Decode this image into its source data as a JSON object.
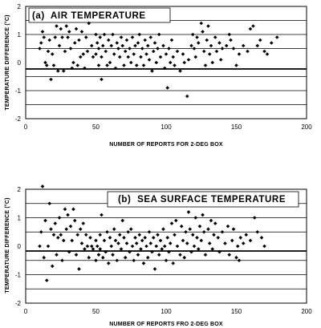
{
  "chart_data": [
    {
      "type": "scatter",
      "title": "(a)  AIR TEMPERATURE",
      "xlabel": "NUMBER OF REPORTS FOR 2-DEG BOX",
      "ylabel": "TEMPERATURE DIFFERENCE (°C)",
      "xlim": [
        0,
        200
      ],
      "ylim": [
        -2,
        2
      ],
      "xticks": [
        "0",
        "50",
        "100",
        "150",
        "200"
      ],
      "yticks": [
        "-2",
        "-1",
        "0",
        "1",
        "2"
      ],
      "grid": "horizontal",
      "points": [
        [
          10,
          0.5
        ],
        [
          11,
          0.7
        ],
        [
          12,
          1.1
        ],
        [
          13,
          0.9
        ],
        [
          14,
          0.0
        ],
        [
          15,
          -0.1
        ],
        [
          16,
          0.4
        ],
        [
          17,
          0.8
        ],
        [
          18,
          -0.6
        ],
        [
          19,
          0.3
        ],
        [
          20,
          -0.1
        ],
        [
          21,
          0.9
        ],
        [
          22,
          1.3
        ],
        [
          23,
          -0.3
        ],
        [
          24,
          0.6
        ],
        [
          25,
          1.2
        ],
        [
          26,
          0.9
        ],
        [
          27,
          -0.3
        ],
        [
          28,
          0.4
        ],
        [
          29,
          1.3
        ],
        [
          30,
          0.9
        ],
        [
          31,
          1.1
        ],
        [
          32,
          0.5
        ],
        [
          33,
          -0.2
        ],
        [
          34,
          0.0
        ],
        [
          35,
          0.7
        ],
        [
          36,
          1.2
        ],
        [
          37,
          -0.1
        ],
        [
          38,
          0.8
        ],
        [
          39,
          0.2
        ],
        [
          40,
          1.1
        ],
        [
          41,
          0.3
        ],
        [
          42,
          -0.2
        ],
        [
          43,
          0.9
        ],
        [
          44,
          0.4
        ],
        [
          45,
          1.4
        ],
        [
          47,
          0.6
        ],
        [
          48,
          0.2
        ],
        [
          50,
          1.0
        ],
        [
          50,
          0.3
        ],
        [
          51,
          0.7
        ],
        [
          52,
          -0.1
        ],
        [
          52,
          0.5
        ],
        [
          53,
          0.9
        ],
        [
          54,
          -0.6
        ],
        [
          54,
          0.2
        ],
        [
          55,
          0.6
        ],
        [
          56,
          1.0
        ],
        [
          57,
          0.4
        ],
        [
          58,
          -0.1
        ],
        [
          59,
          0.8
        ],
        [
          60,
          0.0
        ],
        [
          61,
          0.6
        ],
        [
          62,
          1.0
        ],
        [
          63,
          0.3
        ],
        [
          64,
          -0.2
        ],
        [
          65,
          0.7
        ],
        [
          66,
          0.5
        ],
        [
          67,
          0.2
        ],
        [
          68,
          0.9
        ],
        [
          69,
          0.6
        ],
        [
          70,
          -0.1
        ],
        [
          71,
          0.4
        ],
        [
          72,
          0.8
        ],
        [
          73,
          0.2
        ],
        [
          74,
          0.5
        ],
        [
          75,
          0.0
        ],
        [
          76,
          0.9
        ],
        [
          77,
          0.3
        ],
        [
          78,
          0.6
        ],
        [
          79,
          -0.1
        ],
        [
          80,
          0.7
        ],
        [
          81,
          1.0
        ],
        [
          82,
          0.2
        ],
        [
          83,
          0.5
        ],
        [
          84,
          -0.1
        ],
        [
          85,
          0.8
        ],
        [
          86,
          0.3
        ],
        [
          87,
          0.6
        ],
        [
          88,
          0.1
        ],
        [
          89,
          0.9
        ],
        [
          90,
          -0.3
        ],
        [
          91,
          0.4
        ],
        [
          92,
          0.7
        ],
        [
          93,
          0.0
        ],
        [
          94,
          0.5
        ],
        [
          95,
          1.0
        ],
        [
          96,
          0.2
        ],
        [
          98,
          0.6
        ],
        [
          99,
          -0.2
        ],
        [
          100,
          0.3
        ],
        [
          101,
          -0.9
        ],
        [
          102,
          0.5
        ],
        [
          103,
          0.0
        ],
        [
          104,
          0.8
        ],
        [
          105,
          0.2
        ],
        [
          106,
          -0.1
        ],
        [
          108,
          0.4
        ],
        [
          110,
          -0.3
        ],
        [
          112,
          0.3
        ],
        [
          113,
          0.0
        ],
        [
          115,
          -1.2
        ],
        [
          116,
          0.1
        ],
        [
          118,
          0.6
        ],
        [
          119,
          1.0
        ],
        [
          120,
          0.5
        ],
        [
          121,
          0.2
        ],
        [
          122,
          0.9
        ],
        [
          123,
          0.7
        ],
        [
          125,
          1.4
        ],
        [
          126,
          1.1
        ],
        [
          127,
          0.4
        ],
        [
          128,
          -0.1
        ],
        [
          129,
          0.8
        ],
        [
          130,
          1.3
        ],
        [
          131,
          0.3
        ],
        [
          132,
          0.6
        ],
        [
          133,
          0.0
        ],
        [
          135,
          0.9
        ],
        [
          136,
          0.4
        ],
        [
          138,
          0.7
        ],
        [
          139,
          0.1
        ],
        [
          140,
          0.5
        ],
        [
          143,
          0.6
        ],
        [
          145,
          1.0
        ],
        [
          146,
          0.8
        ],
        [
          148,
          0.5
        ],
        [
          150,
          -0.1
        ],
        [
          152,
          0.3
        ],
        [
          155,
          0.6
        ],
        [
          158,
          0.4
        ],
        [
          160,
          1.2
        ],
        [
          162,
          1.3
        ],
        [
          165,
          0.6
        ],
        [
          167,
          0.8
        ],
        [
          170,
          0.4
        ],
        [
          172,
          0.3
        ],
        [
          175,
          0.7
        ],
        [
          179,
          0.9
        ]
      ]
    },
    {
      "type": "scatter",
      "title": "(b)  SEA SURFACE TEMPERATURE",
      "xlabel": "NUMBER OF REPORTS FRO 2-DEG BOX",
      "ylabel": "TEMPERATURE DIFFERENCE (°C)",
      "xlim": [
        0,
        200
      ],
      "ylim": [
        -2,
        2
      ],
      "xticks": [
        "0",
        "50",
        "100",
        "150",
        "200"
      ],
      "yticks": [
        "-2",
        "-1",
        "0",
        "1",
        "2"
      ],
      "grid": "horizontal",
      "points": [
        [
          10,
          0.0
        ],
        [
          11,
          0.5
        ],
        [
          12,
          2.1
        ],
        [
          13,
          -0.4
        ],
        [
          14,
          0.9
        ],
        [
          15,
          -1.2
        ],
        [
          16,
          0.0
        ],
        [
          17,
          1.5
        ],
        [
          18,
          0.6
        ],
        [
          19,
          -0.7
        ],
        [
          20,
          0.4
        ],
        [
          21,
          0.8
        ],
        [
          22,
          -0.3
        ],
        [
          23,
          0.3
        ],
        [
          24,
          1.0
        ],
        [
          25,
          0.4
        ],
        [
          26,
          -0.5
        ],
        [
          27,
          0.2
        ],
        [
          28,
          1.3
        ],
        [
          29,
          0.6
        ],
        [
          30,
          1.1
        ],
        [
          31,
          -0.2
        ],
        [
          32,
          0.7
        ],
        [
          33,
          0.2
        ],
        [
          34,
          1.3
        ],
        [
          35,
          0.9
        ],
        [
          36,
          -0.3
        ],
        [
          37,
          0.4
        ],
        [
          38,
          -0.8
        ],
        [
          39,
          0.6
        ],
        [
          40,
          0.1
        ],
        [
          41,
          0.8
        ],
        [
          42,
          -0.1
        ],
        [
          43,
          0.4
        ],
        [
          44,
          0.0
        ],
        [
          45,
          -0.4
        ],
        [
          46,
          0.3
        ],
        [
          47,
          0.0
        ],
        [
          48,
          -0.1
        ],
        [
          50,
          0.2
        ],
        [
          50,
          -0.5
        ],
        [
          51,
          0.0
        ],
        [
          52,
          -0.3
        ],
        [
          53,
          0.4
        ],
        [
          53,
          -0.1
        ],
        [
          54,
          1.1
        ],
        [
          55,
          -0.4
        ],
        [
          56,
          0.2
        ],
        [
          57,
          -0.2
        ],
        [
          58,
          0.5
        ],
        [
          59,
          -0.6
        ],
        [
          60,
          0.3
        ],
        [
          61,
          0.0
        ],
        [
          62,
          -0.3
        ],
        [
          63,
          0.6
        ],
        [
          64,
          0.2
        ],
        [
          65,
          -0.5
        ],
        [
          66,
          0.1
        ],
        [
          67,
          0.4
        ],
        [
          68,
          -0.1
        ],
        [
          69,
          0.9
        ],
        [
          70,
          0.3
        ],
        [
          71,
          -0.4
        ],
        [
          72,
          0.1
        ],
        [
          73,
          0.5
        ],
        [
          74,
          -0.2
        ],
        [
          75,
          0.6
        ],
        [
          76,
          0.0
        ],
        [
          77,
          -0.5
        ],
        [
          78,
          0.3
        ],
        [
          79,
          0.1
        ],
        [
          80,
          -0.3
        ],
        [
          81,
          0.4
        ],
        [
          82,
          -0.1
        ],
        [
          83,
          0.2
        ],
        [
          84,
          -0.6
        ],
        [
          85,
          0.3
        ],
        [
          86,
          0.0
        ],
        [
          87,
          -0.4
        ],
        [
          88,
          0.5
        ],
        [
          89,
          0.1
        ],
        [
          90,
          -0.2
        ],
        [
          91,
          0.3
        ],
        [
          92,
          -0.8
        ],
        [
          93,
          0.0
        ],
        [
          94,
          0.4
        ],
        [
          95,
          -0.3
        ],
        [
          96,
          0.2
        ],
        [
          97,
          -0.1
        ],
        [
          98,
          0.6
        ],
        [
          99,
          0.0
        ],
        [
          100,
          -0.5
        ],
        [
          101,
          0.3
        ],
        [
          102,
          -0.2
        ],
        [
          103,
          0.1
        ],
        [
          104,
          0.8
        ],
        [
          105,
          -0.6
        ],
        [
          106,
          0.4
        ],
        [
          107,
          0.9
        ],
        [
          108,
          0.0
        ],
        [
          110,
          -0.3
        ],
        [
          111,
          0.7
        ],
        [
          112,
          0.2
        ],
        [
          113,
          -0.4
        ],
        [
          114,
          0.5
        ],
        [
          115,
          0.1
        ],
        [
          116,
          1.2
        ],
        [
          117,
          0.6
        ],
        [
          118,
          -0.2
        ],
        [
          119,
          0.4
        ],
        [
          120,
          0.0
        ],
        [
          121,
          1.0
        ],
        [
          122,
          0.3
        ],
        [
          123,
          -0.1
        ],
        [
          124,
          0.7
        ],
        [
          125,
          0.2
        ],
        [
          126,
          1.1
        ],
        [
          127,
          0.5
        ],
        [
          128,
          -0.3
        ],
        [
          130,
          0.6
        ],
        [
          131,
          0.1
        ],
        [
          132,
          0.9
        ],
        [
          133,
          -0.1
        ],
        [
          134,
          0.4
        ],
        [
          135,
          0.8
        ],
        [
          137,
          0.3
        ],
        [
          138,
          -0.2
        ],
        [
          140,
          0.5
        ],
        [
          142,
          0.1
        ],
        [
          144,
          0.7
        ],
        [
          145,
          -0.3
        ],
        [
          147,
          0.2
        ],
        [
          148,
          0.6
        ],
        [
          150,
          -0.4
        ],
        [
          151,
          0.0
        ],
        [
          152,
          -0.5
        ],
        [
          153,
          0.3
        ],
        [
          155,
          0.1
        ],
        [
          157,
          0.4
        ],
        [
          160,
          0.2
        ],
        [
          163,
          1.0
        ],
        [
          165,
          0.5
        ],
        [
          168,
          0.3
        ],
        [
          170,
          0.0
        ]
      ]
    }
  ]
}
